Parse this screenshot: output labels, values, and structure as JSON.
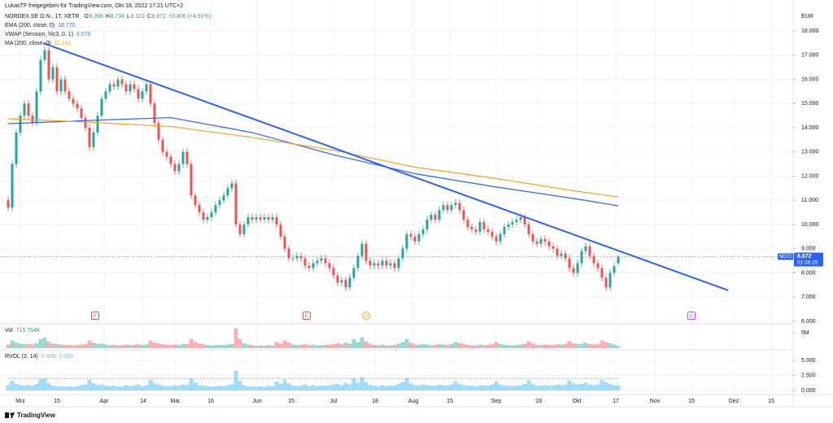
{
  "chart_data": {
    "type": "candlestick",
    "attribution": "LukasTF freigegeben für TradingView.com, Okt 18, 2022 17:21 UTC+2",
    "title": "NORDEX SE O.N., 1T, XETR",
    "ohlc_legend": [
      {
        "key": "O",
        "value": 8.398
      },
      {
        "key": "H",
        "value": 8.734
      },
      {
        "key": "L",
        "value": 8.322
      },
      {
        "key": "C",
        "value": 8.672
      }
    ],
    "change": "+0.406 (+4.91%)",
    "currency": "EUR",
    "up_color": "#26a69a",
    "down_color": "#ef5350",
    "grid": true,
    "xlim": [
      -2,
      193
    ],
    "xticks": [
      {
        "value": 3,
        "label": "Mrz"
      },
      {
        "value": 12,
        "label": "15"
      },
      {
        "value": 23.6,
        "label": "Apr"
      },
      {
        "value": 33.2,
        "label": "14"
      },
      {
        "value": 41,
        "label": "Mai"
      },
      {
        "value": 49.8,
        "label": "16"
      },
      {
        "value": 61.2,
        "label": "Jun"
      },
      {
        "value": 69.6,
        "label": "15"
      },
      {
        "value": 80,
        "label": "Jul"
      },
      {
        "value": 90.2,
        "label": "18"
      },
      {
        "value": 99.6,
        "label": "Aug"
      },
      {
        "value": 108.6,
        "label": "15"
      },
      {
        "value": 120,
        "label": "Sep"
      },
      {
        "value": 130.4,
        "label": "19"
      },
      {
        "value": 139.8,
        "label": "Okt"
      },
      {
        "value": 149.4,
        "label": "17"
      },
      {
        "value": 159,
        "label": "Nov"
      },
      {
        "value": 168,
        "label": "15"
      },
      {
        "value": 178.4,
        "label": "Dez"
      },
      {
        "value": 187.6,
        "label": "15"
      }
    ],
    "ylim": [
      5.93,
      18.81
    ],
    "yticks": [
      {
        "value": 6,
        "label": "6.000"
      },
      {
        "value": 7,
        "label": "7.000"
      },
      {
        "value": 8,
        "label": "8.000"
      },
      {
        "value": 9,
        "label": "9.000"
      },
      {
        "value": 10,
        "label": "10.000"
      },
      {
        "value": 11,
        "label": "11.000"
      },
      {
        "value": 12,
        "label": "12.000"
      },
      {
        "value": 13,
        "label": "13.000"
      },
      {
        "value": 14,
        "label": "14.000"
      },
      {
        "value": 15,
        "label": "15.000"
      },
      {
        "value": 16,
        "label": "16.000"
      },
      {
        "value": 17,
        "label": "17.000"
      },
      {
        "value": 18,
        "label": "18.000"
      }
    ],
    "open": [
      11.0,
      10.7,
      12.5,
      13.8,
      14.5,
      15.0,
      14.5,
      14.2,
      15.5,
      16.8,
      17.2,
      16.0,
      16.5,
      15.5,
      16.0,
      15.5,
      15.2,
      15.0,
      14.8,
      14.4,
      14.0,
      13.2,
      13.8,
      14.5,
      15.2,
      15.5,
      15.8,
      15.7,
      16.0,
      15.8,
      15.5,
      15.8,
      15.6,
      15.2,
      15.5,
      15.8,
      15.0,
      14.2,
      13.5,
      13.0,
      12.8,
      12.5,
      12.2,
      12.5,
      13.0,
      12.5,
      11.2,
      10.8,
      10.5,
      10.2,
      10.3,
      10.5,
      10.8,
      11.0,
      11.2,
      11.5,
      11.7,
      10.0,
      9.6,
      10.0,
      10.3,
      10.2,
      10.3,
      10.2,
      10.3,
      10.2,
      10.3,
      10.0,
      9.5,
      9.0,
      8.6,
      8.6,
      8.7,
      8.6,
      8.3,
      8.2,
      8.4,
      8.5,
      8.6,
      8.4,
      8.2,
      7.9,
      7.6,
      7.7,
      7.4,
      7.8,
      8.2,
      8.7,
      9.2,
      8.5,
      8.3,
      8.4,
      8.3,
      8.5,
      8.3,
      8.4,
      8.2,
      8.6,
      9.0,
      9.6,
      9.5,
      9.3,
      9.6,
      9.8,
      10.2,
      10.4,
      10.2,
      10.6,
      10.8,
      10.6,
      10.8,
      10.9,
      10.6,
      10.2,
      9.9,
      9.8,
      9.7,
      10.1,
      9.8,
      9.7,
      9.5,
      9.3,
      9.6,
      9.9,
      10.0,
      10.1,
      10.2,
      10.3,
      10.0,
      9.6,
      9.3,
      9.2,
      9.4,
      9.3,
      9.1,
      9.0,
      8.7,
      8.8,
      8.6,
      8.2,
      8.0,
      8.4,
      8.9,
      9.1,
      8.7,
      8.4,
      8.2,
      7.8,
      7.4,
      8.0,
      8.398
    ],
    "high": [
      11.15,
      12.65,
      13.95,
      14.65,
      15.15,
      15.15,
      14.65,
      15.65,
      16.95,
      17.35,
      17.35,
      16.65,
      16.65,
      16.15,
      16.15,
      15.65,
      15.35,
      15.15,
      14.95,
      14.55,
      14.15,
      13.95,
      14.65,
      15.35,
      15.65,
      15.95,
      15.95,
      16.15,
      16.15,
      15.95,
      15.95,
      15.95,
      15.75,
      15.65,
      15.95,
      15.95,
      15.15,
      14.35,
      13.65,
      13.15,
      12.95,
      12.65,
      12.65,
      13.15,
      13.15,
      12.65,
      11.35,
      10.95,
      10.65,
      10.45,
      10.65,
      10.95,
      11.15,
      11.35,
      11.65,
      11.85,
      11.85,
      10.15,
      10.15,
      10.45,
      10.45,
      10.45,
      10.45,
      10.45,
      10.45,
      10.45,
      10.45,
      10.15,
      9.65,
      9.15,
      8.75,
      8.85,
      8.85,
      8.75,
      8.45,
      8.55,
      8.65,
      8.75,
      8.75,
      8.55,
      8.35,
      8.05,
      7.85,
      7.85,
      7.95,
      8.35,
      8.85,
      9.35,
      9.35,
      8.65,
      8.55,
      8.55,
      8.65,
      8.65,
      8.55,
      8.55,
      8.75,
      9.15,
      9.75,
      9.75,
      9.65,
      9.75,
      9.95,
      10.35,
      10.55,
      10.55,
      10.75,
      10.95,
      10.95,
      10.95,
      11.05,
      11.05,
      10.75,
      10.35,
      10.05,
      9.95,
      10.25,
      10.25,
      9.95,
      9.85,
      9.65,
      9.75,
      10.05,
      10.15,
      10.25,
      10.35,
      10.45,
      10.45,
      10.15,
      9.75,
      9.45,
      9.55,
      9.55,
      9.45,
      9.25,
      9.15,
      8.95,
      8.95,
      8.75,
      8.35,
      8.55,
      9.05,
      9.25,
      9.25,
      8.85,
      8.55,
      8.35,
      7.95,
      8.15,
      8.42,
      8.734
    ],
    "low": [
      10.55,
      10.55,
      12.35,
      13.65,
      14.35,
      14.35,
      14.05,
      14.05,
      15.35,
      16.65,
      15.85,
      15.85,
      15.35,
      15.35,
      15.35,
      15.05,
      14.85,
      14.65,
      14.25,
      13.85,
      13.05,
      13.05,
      13.65,
      14.35,
      15.05,
      15.35,
      15.55,
      15.55,
      15.65,
      15.35,
      15.35,
      15.45,
      15.05,
      15.05,
      15.35,
      14.85,
      14.05,
      13.35,
      12.85,
      12.65,
      12.35,
      12.05,
      12.05,
      12.35,
      12.35,
      11.05,
      10.65,
      10.35,
      10.05,
      10.05,
      10.15,
      10.35,
      10.65,
      10.85,
      11.05,
      11.35,
      9.85,
      9.45,
      9.45,
      9.85,
      10.05,
      10.05,
      10.05,
      10.05,
      10.05,
      10.05,
      9.85,
      9.35,
      8.85,
      8.45,
      8.45,
      8.45,
      8.45,
      8.15,
      8.05,
      8.05,
      8.25,
      8.35,
      8.25,
      8.05,
      7.75,
      7.45,
      7.45,
      7.25,
      7.25,
      7.65,
      8.05,
      8.55,
      8.35,
      8.15,
      8.15,
      8.15,
      8.15,
      8.15,
      8.15,
      8.05,
      8.05,
      8.45,
      8.85,
      9.35,
      9.15,
      9.15,
      9.45,
      9.65,
      10.05,
      10.05,
      10.05,
      10.45,
      10.45,
      10.45,
      10.65,
      10.45,
      10.05,
      9.75,
      9.65,
      9.55,
      9.55,
      9.65,
      9.55,
      9.35,
      9.15,
      9.15,
      9.45,
      9.75,
      9.85,
      9.95,
      10.05,
      9.85,
      9.45,
      9.15,
      9.05,
      9.05,
      9.15,
      8.95,
      8.85,
      8.55,
      8.55,
      8.45,
      8.05,
      7.85,
      7.85,
      8.25,
      8.75,
      8.55,
      8.25,
      8.05,
      7.65,
      7.25,
      7.25,
      7.85,
      8.322
    ],
    "close": [
      10.7,
      12.5,
      13.8,
      14.5,
      15.0,
      14.5,
      14.2,
      15.5,
      16.8,
      17.2,
      16.0,
      16.5,
      15.5,
      16.0,
      15.5,
      15.2,
      15.0,
      14.8,
      14.4,
      14.0,
      13.2,
      13.8,
      14.5,
      15.2,
      15.5,
      15.8,
      15.7,
      16.0,
      15.8,
      15.5,
      15.8,
      15.6,
      15.2,
      15.5,
      15.8,
      15.0,
      14.2,
      13.5,
      13.0,
      12.8,
      12.5,
      12.2,
      12.5,
      13.0,
      12.5,
      11.2,
      10.8,
      10.5,
      10.2,
      10.3,
      10.5,
      10.8,
      11.0,
      11.2,
      11.5,
      11.7,
      10.0,
      9.6,
      10.0,
      10.3,
      10.2,
      10.3,
      10.2,
      10.3,
      10.2,
      10.3,
      10.0,
      9.5,
      9.0,
      8.6,
      8.6,
      8.7,
      8.6,
      8.3,
      8.2,
      8.4,
      8.5,
      8.6,
      8.4,
      8.2,
      7.9,
      7.6,
      7.7,
      7.4,
      7.8,
      8.2,
      8.7,
      9.2,
      8.5,
      8.3,
      8.4,
      8.3,
      8.5,
      8.3,
      8.4,
      8.2,
      8.6,
      9.0,
      9.6,
      9.5,
      9.3,
      9.6,
      9.8,
      10.2,
      10.4,
      10.2,
      10.6,
      10.8,
      10.6,
      10.8,
      10.9,
      10.6,
      10.2,
      9.9,
      9.8,
      9.7,
      10.1,
      9.8,
      9.7,
      9.5,
      9.3,
      9.6,
      9.9,
      10.0,
      10.1,
      10.2,
      10.3,
      10.0,
      9.6,
      9.3,
      9.2,
      9.4,
      9.3,
      9.1,
      9.0,
      8.7,
      8.8,
      8.6,
      8.2,
      8.0,
      8.4,
      8.9,
      9.1,
      8.7,
      8.4,
      8.2,
      7.8,
      7.4,
      8.0,
      8.27,
      8.672
    ],
    "overlays": [
      {
        "name": "EMA (200, close, 0)",
        "value_label": "10.770",
        "color": "#2962ff",
        "x": [
          0,
          20,
          40,
          60,
          80,
          100,
          120,
          140,
          150
        ],
        "values": [
          14.17,
          14.3,
          14.42,
          13.8,
          12.88,
          12.1,
          11.55,
          11.05,
          10.77
        ]
      },
      {
        "name": "VWAP (Session, hlc3, 0, 1)",
        "value_label": "8.576",
        "color": "#2196f3"
      },
      {
        "name": "MA (200, close, 0)",
        "value_label": "11.141",
        "color": "#f7a21b",
        "x": [
          0,
          20,
          40,
          60,
          80,
          100,
          120,
          140,
          150
        ],
        "values": [
          14.37,
          14.23,
          14.05,
          13.6,
          13.07,
          12.37,
          11.9,
          11.37,
          11.141
        ]
      }
    ],
    "trendline": {
      "color": "#2962ff",
      "x": [
        8.6,
        177
      ],
      "values": [
        17.5,
        7.28
      ]
    },
    "price_tag": {
      "symbol": "NDX1",
      "value": 8.672,
      "countdown": "01:38:20",
      "color": "#2962ff"
    },
    "events": [
      {
        "label": "E",
        "x": 21.4,
        "color": "#ef5350"
      },
      {
        "label": "E",
        "x": 73.4,
        "color": "#ef5350"
      },
      {
        "label": "S",
        "x": 88,
        "color": "#f7a21b"
      },
      {
        "label": "E",
        "x": 168,
        "color": "#e040fb"
      }
    ],
    "volume": {
      "name": "Vol",
      "value_label": "715.764K",
      "ylim": [
        0,
        7.4
      ],
      "yticks": [
        {
          "value": 5,
          "label": "5M"
        }
      ],
      "values": [
        1.2,
        2.5,
        1.8,
        1.5,
        1.3,
        1.4,
        1.2,
        1.6,
        3.0,
        3.5,
        2.2,
        1.5,
        1.3,
        1.2,
        1.0,
        1.1,
        0.9,
        1.0,
        1.2,
        1.3,
        2.5,
        1.8,
        1.4,
        1.5,
        1.2,
        1.0,
        1.1,
        0.9,
        1.0,
        1.2,
        1.0,
        1.1,
        1.3,
        1.0,
        1.2,
        2.5,
        1.8,
        1.6,
        1.3,
        1.1,
        1.0,
        1.2,
        1.1,
        1.4,
        1.3,
        3.0,
        2.0,
        1.5,
        1.3,
        1.0,
        0.9,
        1.0,
        1.1,
        1.0,
        1.2,
        1.4,
        6.5,
        3.0,
        1.6,
        1.2,
        1.0,
        0.8,
        0.9,
        0.8,
        1.0,
        0.9,
        2.0,
        1.5,
        2.5,
        1.8,
        1.2,
        1.0,
        1.1,
        1.3,
        1.0,
        1.2,
        0.9,
        1.0,
        1.1,
        1.2,
        1.4,
        1.6,
        1.3,
        1.8,
        1.5,
        3.0,
        2.0,
        3.5,
        2.2,
        1.4,
        1.1,
        1.0,
        1.2,
        0.9,
        1.0,
        1.1,
        1.5,
        2.0,
        3.0,
        1.8,
        1.2,
        1.1,
        1.3,
        1.2,
        1.0,
        1.1,
        1.3,
        1.2,
        1.0,
        1.4,
        2.0,
        1.6,
        1.3,
        1.1,
        1.0,
        0.9,
        1.2,
        1.0,
        1.1,
        1.3,
        2.0,
        1.4,
        1.1,
        1.0,
        0.9,
        1.0,
        1.2,
        1.4,
        2.2,
        1.5,
        1.1,
        1.0,
        1.2,
        1.1,
        1.0,
        1.3,
        1.2,
        1.4,
        2.3,
        1.6,
        1.3,
        1.5,
        1.8,
        1.4,
        1.2,
        1.3,
        2.5,
        2.0,
        1.6,
        1.2,
        0.716
      ]
    },
    "rvol": {
      "name": "RVOL (2, 14)",
      "value_label": "0.809",
      "level_label": "2.000",
      "level": 2,
      "color": "#4fc3f7",
      "ylim": [
        -0.27,
        6.49
      ],
      "yticks": [
        {
          "value": 0,
          "label": "0.000"
        },
        {
          "value": 2.5,
          "label": "2.500"
        },
        {
          "value": 5,
          "label": "5.000"
        }
      ],
      "values": [
        0.9,
        1.6,
        1.1,
        0.9,
        0.8,
        0.9,
        0.8,
        1.1,
        1.9,
        2.0,
        1.2,
        0.8,
        0.7,
        0.7,
        0.6,
        0.7,
        0.6,
        0.7,
        0.9,
        1.0,
        1.8,
        1.2,
        0.9,
        1.0,
        0.8,
        0.7,
        0.8,
        0.6,
        0.7,
        0.9,
        0.7,
        0.8,
        1.0,
        0.7,
        0.9,
        1.8,
        1.2,
        1.0,
        0.8,
        0.7,
        0.7,
        0.9,
        0.8,
        1.0,
        0.9,
        2.0,
        1.3,
        0.9,
        0.8,
        0.7,
        0.6,
        0.7,
        0.8,
        0.7,
        0.9,
        1.0,
        3.3,
        1.6,
        0.9,
        0.7,
        0.7,
        0.6,
        0.7,
        0.6,
        0.8,
        0.7,
        1.5,
        1.1,
        1.8,
        1.2,
        0.8,
        0.7,
        0.8,
        1.0,
        0.7,
        0.9,
        0.7,
        0.8,
        0.8,
        0.9,
        1.0,
        1.1,
        0.9,
        1.2,
        1.0,
        2.0,
        1.3,
        2.2,
        1.4,
        0.9,
        0.8,
        0.7,
        0.9,
        0.7,
        0.8,
        0.8,
        1.1,
        1.4,
        2.0,
        1.2,
        0.9,
        0.8,
        1.0,
        0.9,
        0.8,
        0.8,
        1.0,
        0.9,
        0.8,
        1.0,
        1.5,
        1.1,
        0.9,
        0.8,
        0.8,
        0.7,
        0.9,
        0.8,
        0.8,
        1.0,
        1.5,
        1.0,
        0.8,
        0.8,
        0.7,
        0.8,
        0.9,
        1.1,
        1.7,
        1.1,
        0.8,
        0.8,
        0.9,
        0.8,
        0.8,
        1.0,
        0.9,
        1.0,
        1.7,
        1.2,
        1.0,
        1.1,
        1.3,
        1.0,
        0.9,
        1.0,
        1.8,
        1.4,
        1.1,
        0.9,
        0.809
      ]
    },
    "branding": "TradingView"
  }
}
